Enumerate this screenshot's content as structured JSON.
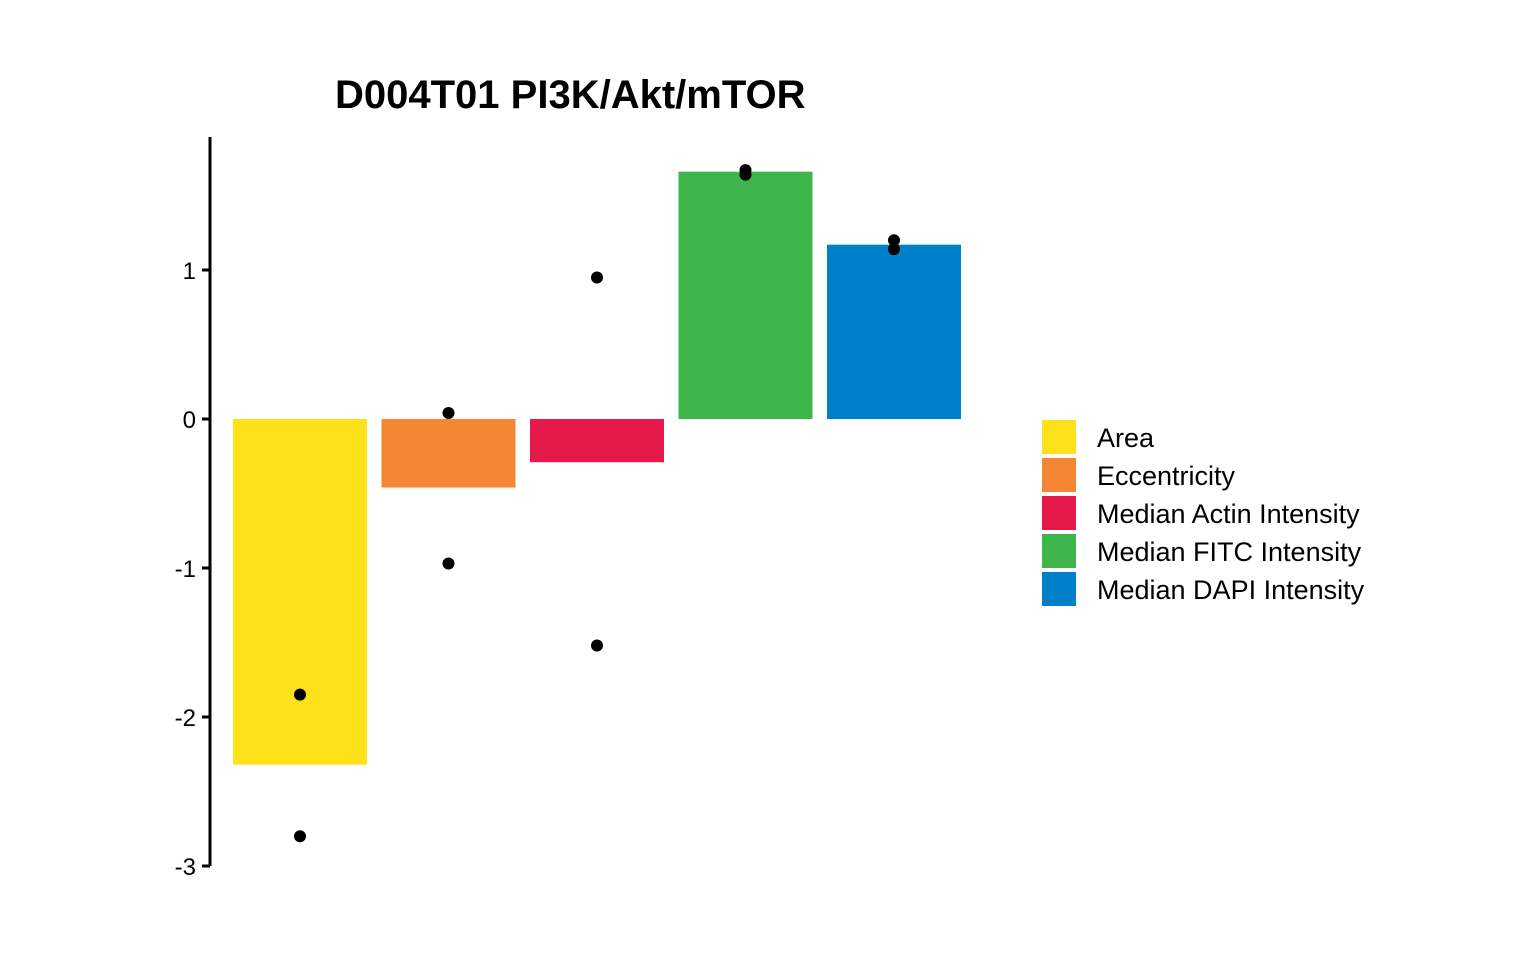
{
  "chart_data": {
    "type": "bar",
    "title": "D004T01 PI3K/Akt/mTOR",
    "xlabel": "",
    "ylabel": "",
    "categories": [
      "Area",
      "Eccentricity",
      "Median Actin Intensity",
      "Median FITC Intensity",
      "Median DAPI Intensity"
    ],
    "values": [
      -2.32,
      -0.46,
      -0.29,
      1.66,
      1.17
    ],
    "points": [
      [
        -1.85,
        -2.8
      ],
      [
        0.04,
        -0.97
      ],
      [
        0.95,
        -1.52
      ],
      [
        1.67,
        1.64
      ],
      [
        1.2,
        1.14
      ]
    ],
    "colors": [
      "#FDE11A",
      "#F48634",
      "#E61A4A",
      "#3DB54B",
      "#0080C8"
    ],
    "ylim": [
      -3,
      1.9
    ],
    "y_ticks": [
      1,
      0,
      -1,
      -2,
      -3
    ],
    "y_tick_labels": [
      "1",
      "0",
      "-1",
      "-2",
      "-3"
    ],
    "x_axis_visible": false,
    "grid": false,
    "legend_position": "right"
  }
}
